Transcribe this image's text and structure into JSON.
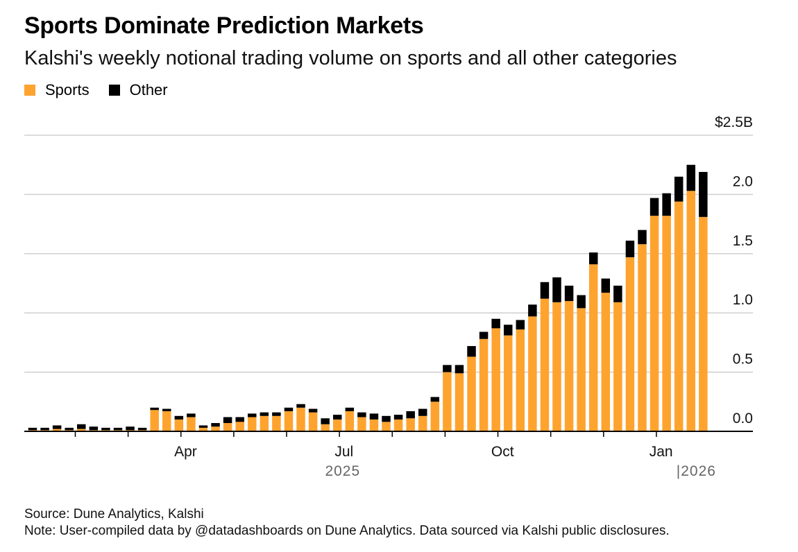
{
  "title": "Sports Dominate Prediction Markets",
  "subtitle": "Kalshi's weekly notional trading volume on sports and all other categories",
  "legend": [
    {
      "label": "Sports",
      "color": "#ffa32f"
    },
    {
      "label": "Other",
      "color": "#000000"
    }
  ],
  "footer": {
    "source": "Source: Dune Analytics, Kalshi",
    "note": "Note: User-compiled data by @datadashboards on Dune Analytics. Data sourced via Kalshi public disclosures."
  },
  "chart_data": {
    "type": "bar",
    "stacked": true,
    "title": "Sports Dominate Prediction Markets",
    "subtitle": "Kalshi's weekly notional trading volume on sports and all other categories",
    "ylim": [
      0,
      2.5
    ],
    "y_ticks": [
      {
        "value": 2.5,
        "label": "$2.5B"
      },
      {
        "value": 2.0,
        "label": "2.0"
      },
      {
        "value": 1.5,
        "label": "1.5"
      },
      {
        "value": 1.0,
        "label": "1.0"
      },
      {
        "value": 0.5,
        "label": "0.5"
      },
      {
        "value": 0.0,
        "label": "0.0"
      }
    ],
    "x_labels": [
      {
        "index": 13,
        "label": "Apr"
      },
      {
        "index": 26,
        "label": "Jul"
      },
      {
        "index": 39,
        "label": "Oct"
      },
      {
        "index": 52,
        "label": "Jan"
      }
    ],
    "year_labels": [
      {
        "index": 26,
        "label": "2025"
      },
      {
        "index": 55,
        "label": "|2026"
      }
    ],
    "grid": true,
    "legend_position": "top-left",
    "series": [
      {
        "name": "Sports",
        "color": "#ffa32f",
        "values": [
          0.01,
          0.01,
          0.02,
          0.01,
          0.02,
          0.01,
          0.01,
          0.01,
          0.01,
          0.01,
          0.18,
          0.17,
          0.1,
          0.12,
          0.03,
          0.04,
          0.07,
          0.08,
          0.12,
          0.13,
          0.13,
          0.17,
          0.2,
          0.16,
          0.06,
          0.1,
          0.17,
          0.12,
          0.1,
          0.08,
          0.1,
          0.11,
          0.13,
          0.25,
          0.5,
          0.49,
          0.63,
          0.78,
          0.87,
          0.81,
          0.86,
          0.97,
          1.12,
          1.09,
          1.1,
          1.04,
          1.41,
          1.17,
          1.09,
          1.47,
          1.58,
          1.82,
          1.82,
          1.94,
          2.03,
          1.81
        ]
      },
      {
        "name": "Other",
        "color": "#000000",
        "values": [
          0.02,
          0.02,
          0.03,
          0.02,
          0.04,
          0.03,
          0.02,
          0.02,
          0.03,
          0.02,
          0.02,
          0.02,
          0.03,
          0.03,
          0.02,
          0.03,
          0.05,
          0.04,
          0.03,
          0.03,
          0.03,
          0.03,
          0.03,
          0.03,
          0.05,
          0.04,
          0.03,
          0.04,
          0.05,
          0.05,
          0.04,
          0.06,
          0.06,
          0.04,
          0.06,
          0.07,
          0.09,
          0.06,
          0.08,
          0.09,
          0.08,
          0.1,
          0.14,
          0.21,
          0.13,
          0.11,
          0.1,
          0.12,
          0.14,
          0.14,
          0.12,
          0.15,
          0.19,
          0.21,
          0.22,
          0.38
        ]
      }
    ]
  }
}
